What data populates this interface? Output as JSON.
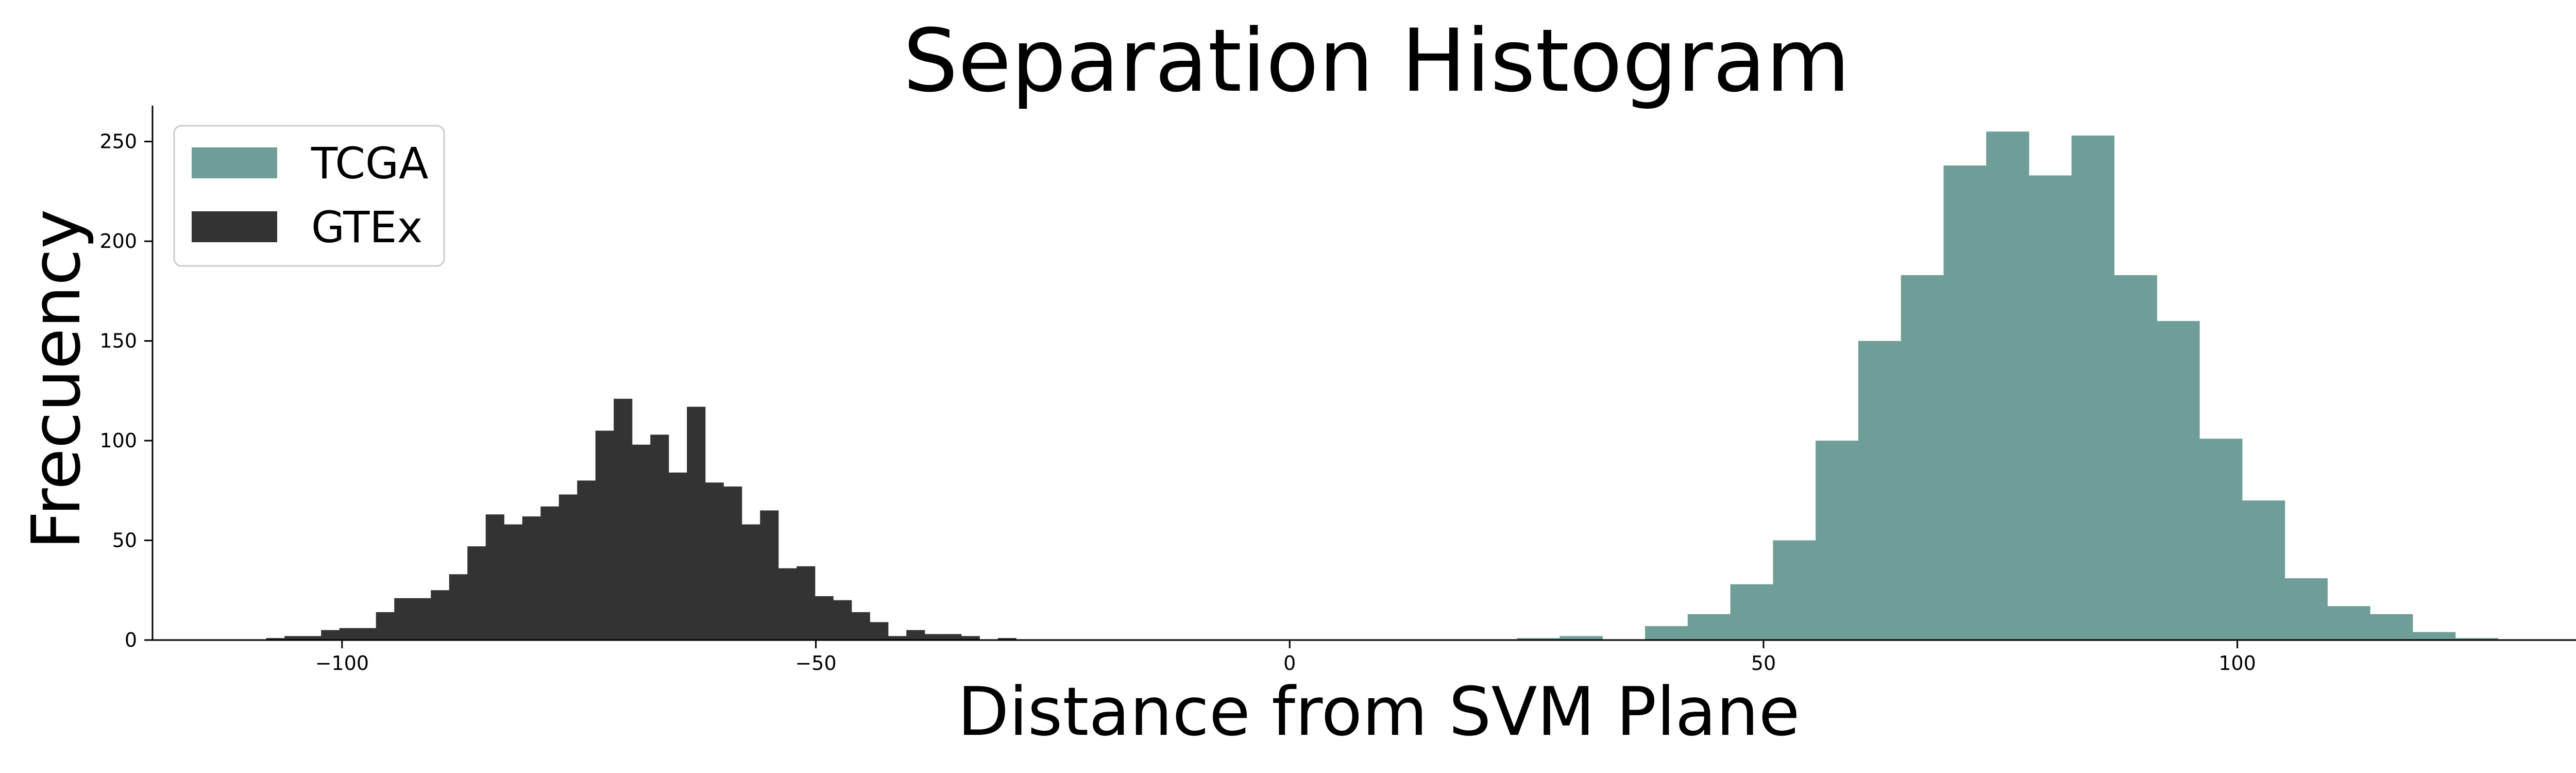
{
  "chart_data": {
    "type": "histogram",
    "title": "Separation Histogram",
    "xlabel": "Distance from SVM Plane",
    "ylabel": "Frecuency",
    "xlim": [
      -120,
      139
    ],
    "ylim": [
      0,
      268
    ],
    "x_ticks": [
      -100,
      -50,
      0,
      50,
      100
    ],
    "y_ticks": [
      0,
      50,
      100,
      150,
      200,
      250
    ],
    "grid": false,
    "legend_position": "top-left",
    "series": [
      {
        "name": "TCGA",
        "color": "#6f9e99",
        "bin_start": 24,
        "bin_width": 4.5,
        "counts": [
          1,
          2,
          0,
          7,
          13,
          28,
          50,
          100,
          150,
          183,
          238,
          255,
          233,
          253,
          183,
          160,
          101,
          70,
          31,
          17,
          13,
          4,
          1
        ]
      },
      {
        "name": "GTEx",
        "color": "#333333",
        "bin_start": -108,
        "bin_width": 1.93,
        "counts": [
          1,
          2,
          2,
          5,
          6,
          6,
          14,
          21,
          21,
          25,
          33,
          47,
          63,
          58,
          62,
          67,
          73,
          80,
          105,
          121,
          98,
          103,
          84,
          117,
          79,
          77,
          58,
          65,
          36,
          37,
          22,
          20,
          14,
          9,
          2,
          5,
          3,
          3,
          2,
          0,
          1
        ]
      }
    ]
  }
}
